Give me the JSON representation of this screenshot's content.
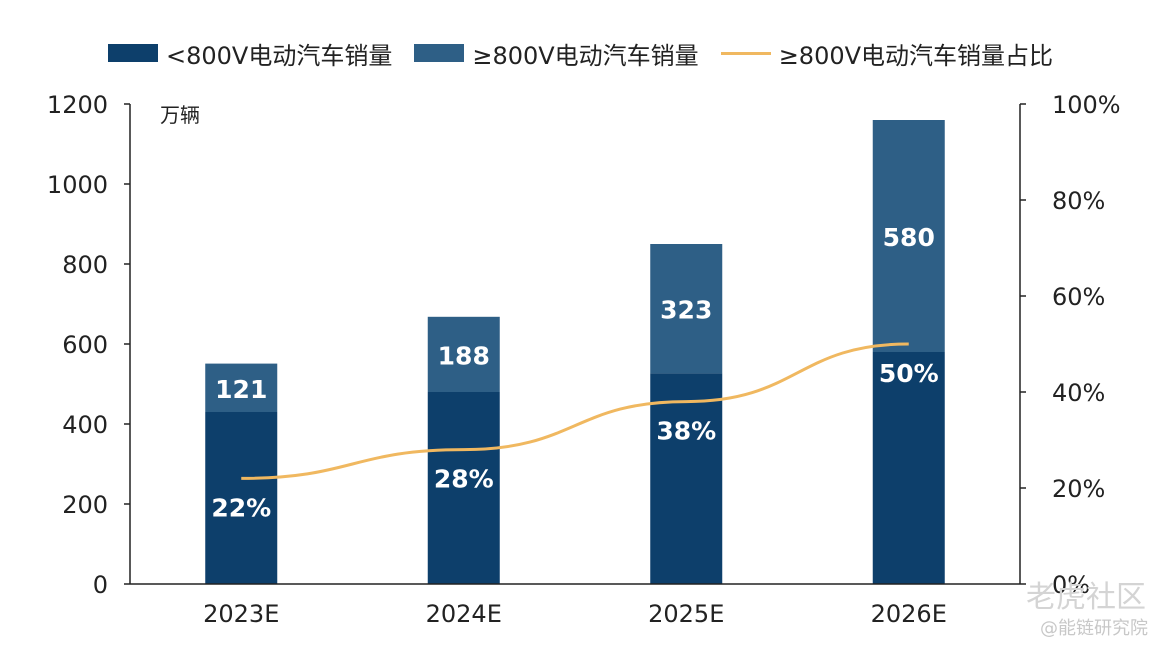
{
  "legend": {
    "items": [
      {
        "label": "<800V电动汽车销量",
        "color": "#0d3f6b",
        "kind": "bar"
      },
      {
        "label": "≥800V电动汽车销量",
        "color": "#2e5f86",
        "kind": "bar"
      },
      {
        "label": "≥800V电动汽车销量占比",
        "color": "#f0b860",
        "kind": "line"
      }
    ]
  },
  "unit_label": "万辆",
  "watermark": {
    "primary": "老虎社区",
    "secondary": "@能链研究院"
  },
  "chart_data": {
    "type": "bar",
    "categories": [
      "2023E",
      "2024E",
      "2025E",
      "2026E"
    ],
    "series": [
      {
        "name": "<800V电动汽车销量",
        "values": [
          430,
          480,
          527,
          580
        ],
        "stacked": true,
        "color": "#0d3f6b"
      },
      {
        "name": "≥800V电动汽车销量",
        "values": [
          121,
          188,
          323,
          580
        ],
        "stacked": true,
        "color": "#2e5f86",
        "data_labels": [
          "121",
          "188",
          "323",
          "580"
        ]
      },
      {
        "name": "≥800V电动汽车销量占比",
        "type": "line",
        "axis": "right",
        "values": [
          22,
          28,
          38,
          50
        ],
        "color": "#f0b860",
        "data_labels": [
          "22%",
          "28%",
          "38%",
          "50%"
        ]
      }
    ],
    "left_axis": {
      "ylim": [
        0,
        1200
      ],
      "ticks": [
        0,
        200,
        400,
        600,
        800,
        1000,
        1200
      ],
      "ylabel": "万辆"
    },
    "right_axis": {
      "ylim": [
        0,
        100
      ],
      "ticks": [
        "0%",
        "20%",
        "40%",
        "60%",
        "80%",
        "100%"
      ]
    },
    "grid": false,
    "legend_position": "top"
  }
}
